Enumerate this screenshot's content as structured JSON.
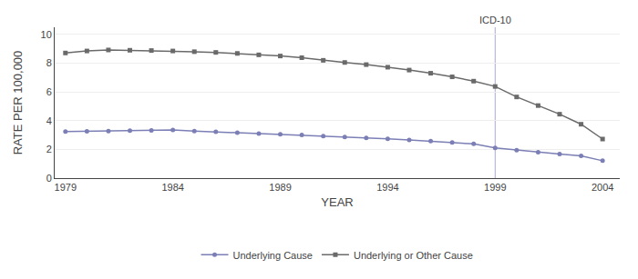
{
  "chart_data": {
    "type": "line",
    "x": [
      1979,
      1980,
      1981,
      1982,
      1983,
      1984,
      1985,
      1986,
      1987,
      1988,
      1989,
      1990,
      1991,
      1992,
      1993,
      1994,
      1995,
      1996,
      1997,
      1998,
      1999,
      2000,
      2001,
      2002,
      2003,
      2004
    ],
    "series": [
      {
        "name": "Underlying Cause",
        "color": "#7b7fb5",
        "marker": "circle",
        "values": [
          3.24,
          3.26,
          3.28,
          3.3,
          3.32,
          3.35,
          3.28,
          3.22,
          3.16,
          3.1,
          3.05,
          3.0,
          2.93,
          2.87,
          2.8,
          2.73,
          2.65,
          2.57,
          2.48,
          2.38,
          2.1,
          1.95,
          1.8,
          1.68,
          1.55,
          1.21
        ]
      },
      {
        "name": "Underlying or Other Cause",
        "color": "#6a6a6a",
        "marker": "square",
        "values": [
          8.71,
          8.85,
          8.92,
          8.9,
          8.88,
          8.85,
          8.8,
          8.75,
          8.68,
          8.58,
          8.5,
          8.38,
          8.2,
          8.05,
          7.9,
          7.72,
          7.52,
          7.3,
          7.05,
          6.75,
          6.38,
          5.65,
          5.05,
          4.45,
          3.75,
          2.72
        ]
      }
    ],
    "x_label": "YEAR",
    "y_label": "RATE PER 100,000",
    "xlim": [
      1978.5,
      2004.8
    ],
    "xticks": [
      1979,
      1984,
      1989,
      1994,
      1999,
      2004
    ],
    "ylim": [
      0,
      10.5
    ],
    "yticks": [
      0,
      2,
      4,
      6,
      8,
      10
    ],
    "grid": true,
    "legend": "bottom",
    "annotations": [
      {
        "text": "ICD-10",
        "x": 1999,
        "color": "#aaaacc"
      }
    ]
  }
}
